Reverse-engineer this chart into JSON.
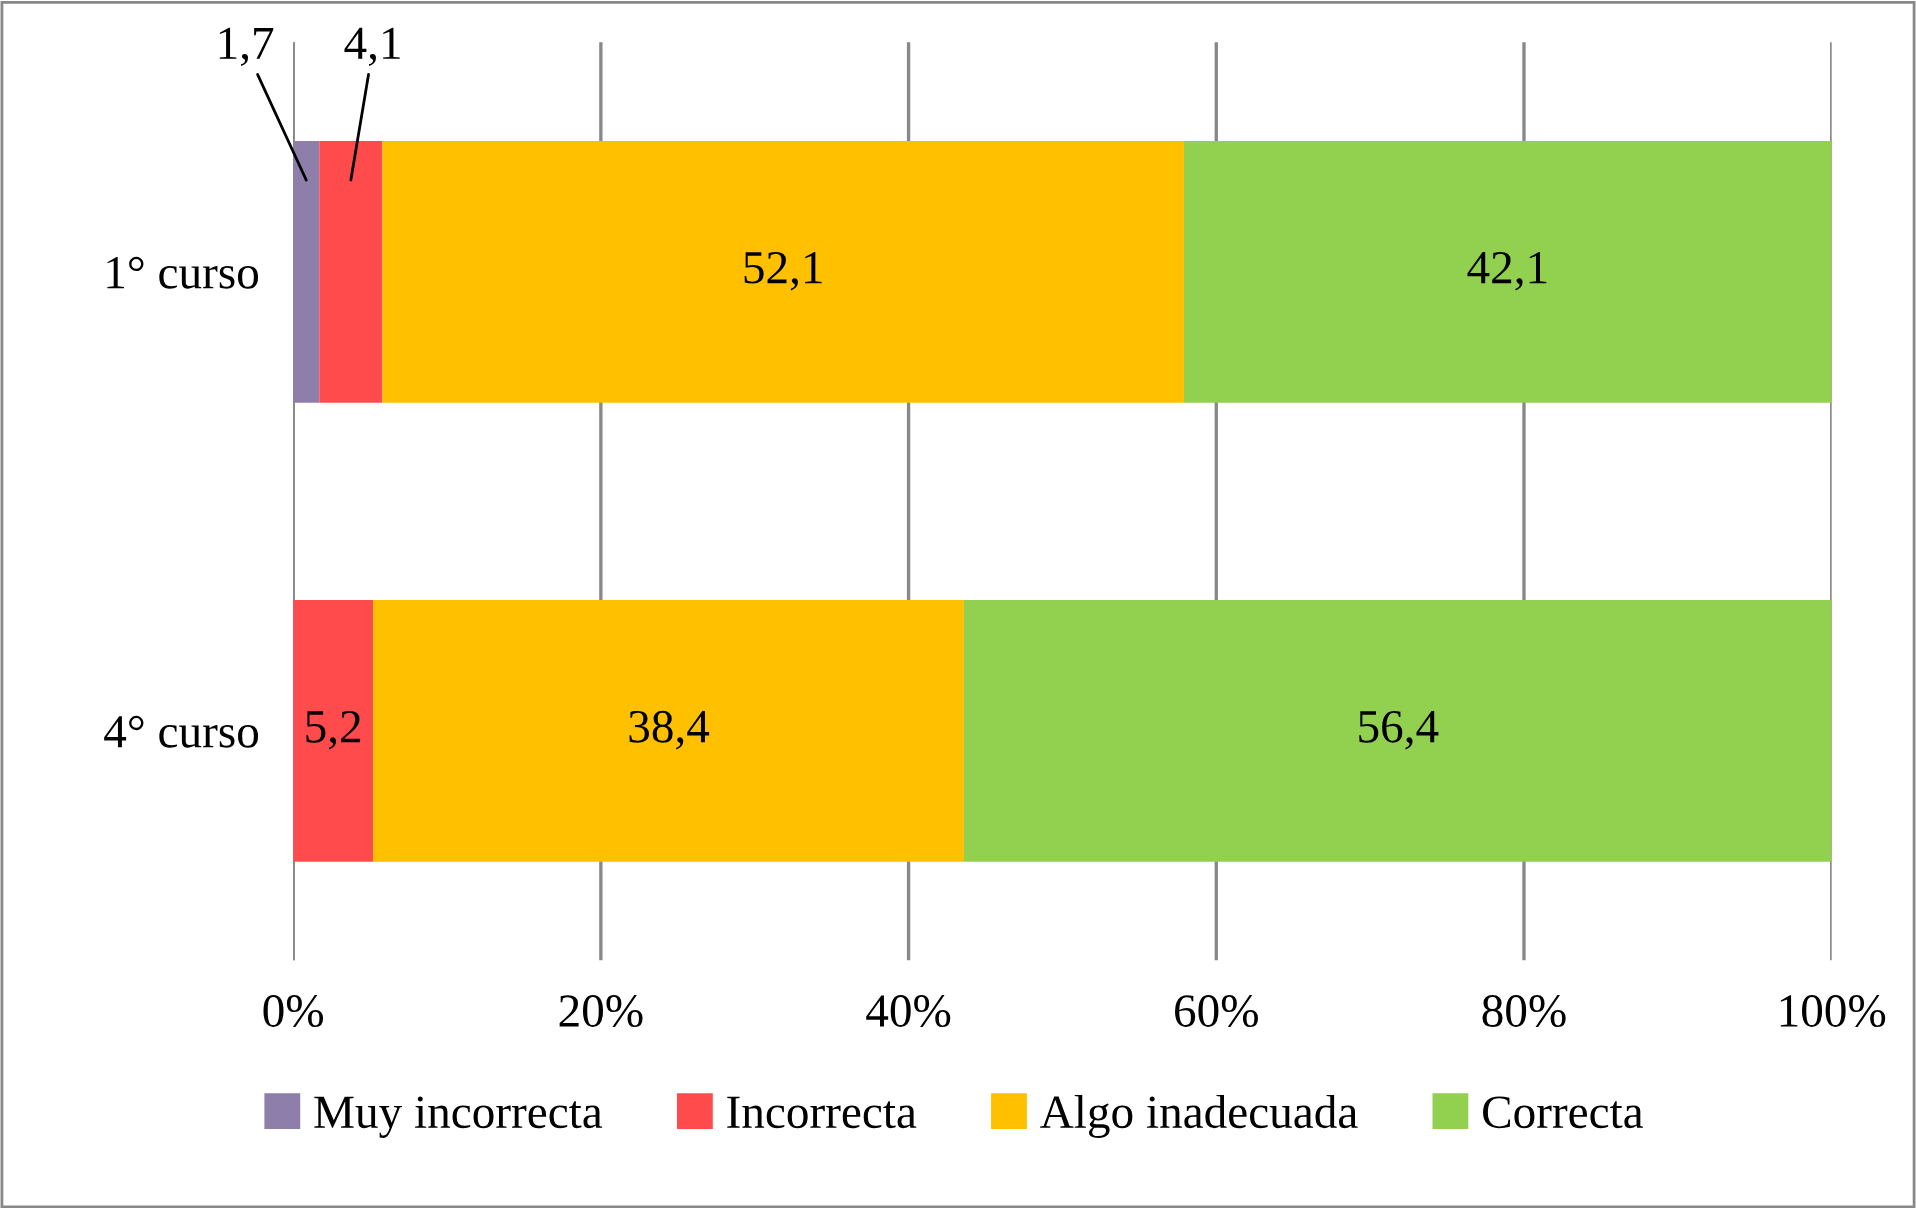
{
  "chart_data": {
    "type": "bar",
    "orientation": "horizontal",
    "stacked": true,
    "categories": [
      "1° curso",
      "4° curso"
    ],
    "series": [
      {
        "name": "Muy incorrecta",
        "color": "#8e7faa",
        "values": [
          1.7,
          null
        ],
        "value_labels": [
          "1,7",
          null
        ]
      },
      {
        "name": "Incorrecta",
        "color": "#ff4b4b",
        "values": [
          4.1,
          5.2
        ],
        "value_labels": [
          "4,1",
          "5,2"
        ]
      },
      {
        "name": "Algo inadecuada",
        "color": "#ffc000",
        "values": [
          52.1,
          38.4
        ],
        "value_labels": [
          "52,1",
          "38,4"
        ]
      },
      {
        "name": "Correcta",
        "color": "#92d050",
        "values": [
          42.1,
          56.4
        ],
        "value_labels": [
          "42,1",
          "56,4"
        ]
      }
    ],
    "xlim": [
      0,
      100
    ],
    "xticks": [
      {
        "value": 0,
        "label": "0%"
      },
      {
        "value": 20,
        "label": "20%"
      },
      {
        "value": 40,
        "label": "40%"
      },
      {
        "value": 60,
        "label": "60%"
      },
      {
        "value": 80,
        "label": "80%"
      },
      {
        "value": 100,
        "label": "100%"
      }
    ],
    "grid": "x",
    "legend": "bottom"
  }
}
